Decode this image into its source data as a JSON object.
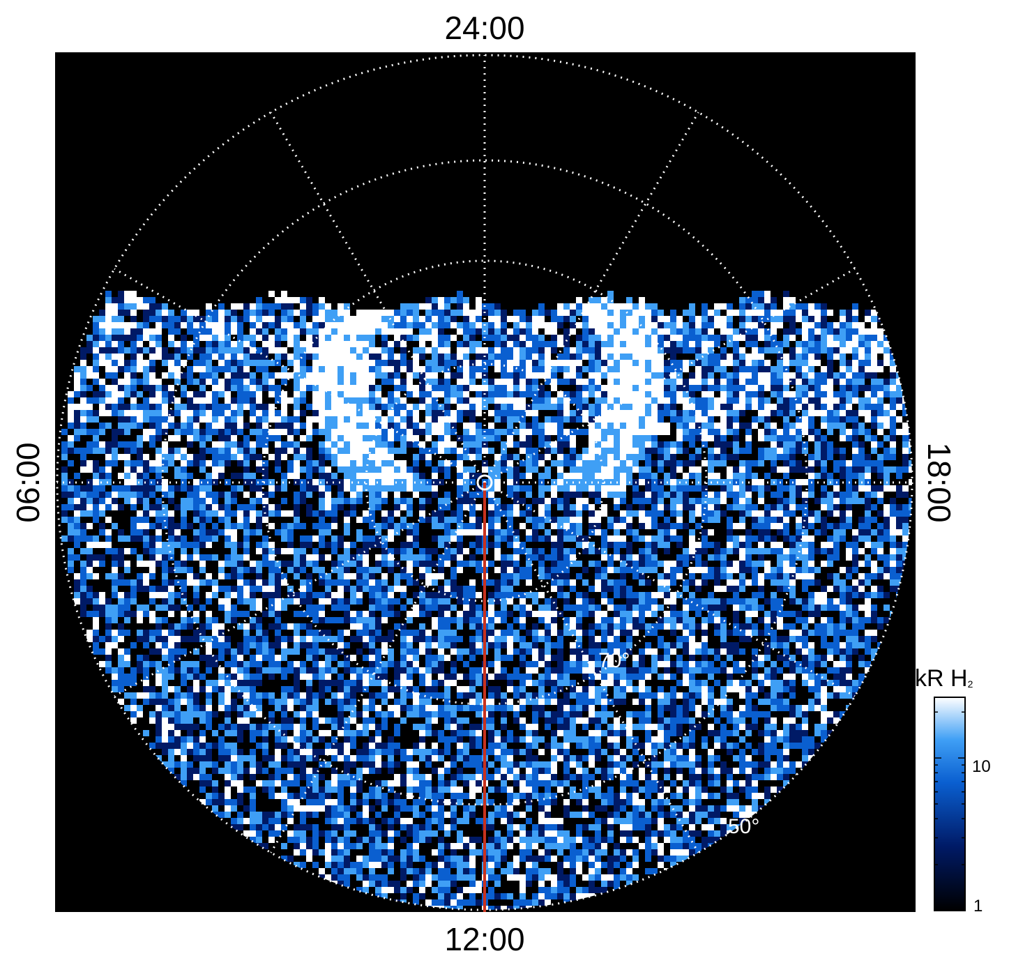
{
  "chart_data": {
    "type": "heatmap",
    "projection": "polar, north-pole-centered",
    "local_time_labels": {
      "top": "24:00",
      "bottom": "12:00",
      "left": "06:00",
      "right": "18:00"
    },
    "latitude_labels": [
      {
        "text": "70°",
        "value": 70
      },
      {
        "text": "50°",
        "value": 50
      }
    ],
    "grid": true,
    "grid_style": "white dotted",
    "colorbar": {
      "title": "kR H",
      "title_subscript": "2",
      "scale": "log",
      "range": [
        1,
        25
      ],
      "ticks": [
        {
          "text": "10",
          "value": 10
        },
        {
          "text": "1",
          "value": 1
        }
      ],
      "colormap": [
        "#000000",
        "#001a66",
        "#0a5fd0",
        "#3f9ff5",
        "#ffffff"
      ]
    },
    "features": [
      "bright auroral oval arc on nightside near 24:00",
      "noisy emission across dayside",
      "red meridian line along 12:00"
    ],
    "colors": {
      "background": "#000000",
      "meridian_line": "#c8321e",
      "grid": "#ffffff"
    }
  }
}
